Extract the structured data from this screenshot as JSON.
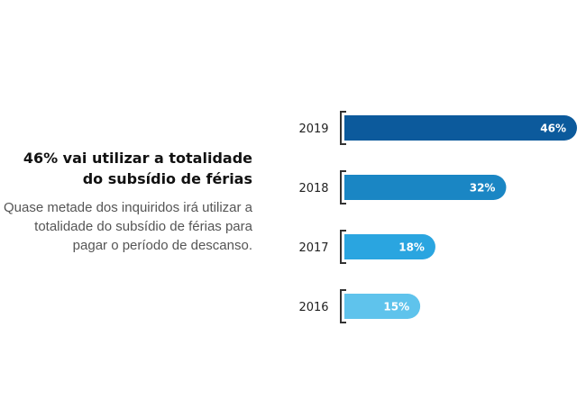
{
  "headline": "46% vai utilizar a totalidade do subsídio de férias",
  "description": "Quase metade dos inquiridos irá utilizar a totalidade do subsídio de férias para pagar o período de descanso.",
  "chart_data": {
    "type": "bar",
    "orientation": "horizontal",
    "categories": [
      "2019",
      "2018",
      "2017",
      "2016"
    ],
    "values": [
      46,
      32,
      18,
      15
    ],
    "value_labels": [
      "46%",
      "32%",
      "18%",
      "15%"
    ],
    "colors": [
      "#0c5a9c",
      "#1a86c4",
      "#2aa5e0",
      "#5fc3ec"
    ],
    "xlim": [
      0,
      46
    ],
    "grid": false,
    "legend": "none"
  }
}
